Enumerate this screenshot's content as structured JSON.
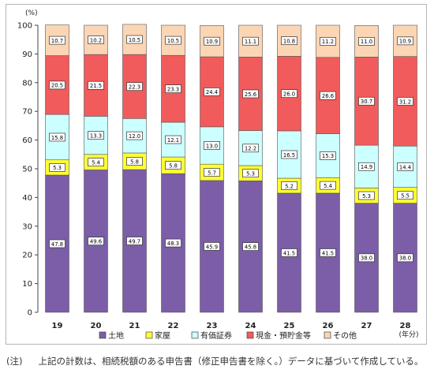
{
  "chart_data": {
    "type": "bar",
    "stacked": true,
    "y_unit_label": "(%)",
    "x_unit_label": "(年分)",
    "ylim": [
      0,
      100
    ],
    "y_ticks": [
      0,
      10,
      20,
      30,
      40,
      50,
      60,
      70,
      80,
      90,
      100
    ],
    "grid": false,
    "legend_position": "bottom",
    "categories": [
      "19",
      "20",
      "21",
      "22",
      "23",
      "24",
      "25",
      "26",
      "27",
      "28"
    ],
    "series": [
      {
        "name": "土地",
        "color": "#7b5ea7",
        "values": [
          47.8,
          49.6,
          49.7,
          48.3,
          45.9,
          45.8,
          41.5,
          41.5,
          38.0,
          38.0
        ]
      },
      {
        "name": "家屋",
        "color": "#ffff33",
        "values": [
          5.3,
          5.4,
          5.8,
          5.8,
          5.7,
          5.3,
          5.2,
          5.4,
          5.3,
          5.5
        ]
      },
      {
        "name": "有価証券",
        "color": "#ccffff",
        "values": [
          15.8,
          13.3,
          12.0,
          12.1,
          13.0,
          12.2,
          16.5,
          15.3,
          14.9,
          14.4
        ]
      },
      {
        "name": "現金・預貯金等",
        "color": "#f15b5b",
        "values": [
          20.5,
          21.5,
          22.3,
          23.3,
          24.4,
          25.6,
          26.0,
          26.6,
          30.7,
          31.2
        ]
      },
      {
        "name": "その他",
        "color": "#fcd5b4",
        "values": [
          10.7,
          10.2,
          10.5,
          10.5,
          10.9,
          11.1,
          10.8,
          11.2,
          11.0,
          10.9
        ]
      }
    ]
  },
  "footnote": {
    "label": "(注)",
    "text": "上記の計数は、相続税額のある申告書（修正申告書を除く。）データに基づいて作成している。"
  }
}
